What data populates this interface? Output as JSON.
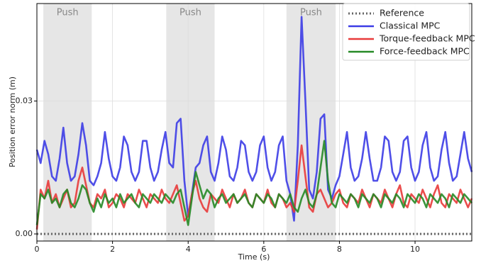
{
  "chart_data": {
    "type": "line",
    "xlabel": "Time (s)",
    "ylabel": "Position error norm (m)",
    "xlim": [
      0,
      11.5
    ],
    "ylim": [
      -0.0016,
      0.052
    ],
    "xticks": [
      0,
      2,
      4,
      6,
      8,
      10
    ],
    "yticks": [
      {
        "value": 0,
        "label": "0.00"
      },
      {
        "value": 0.03,
        "label": "0.03"
      }
    ],
    "grid": true,
    "legend": "upper right",
    "spans": [
      {
        "label": "Push",
        "range": [
          0.17,
          1.45
        ]
      },
      {
        "label": "Push",
        "range": [
          3.42,
          4.7
        ]
      },
      {
        "label": "Push",
        "range": [
          6.6,
          7.9
        ]
      }
    ],
    "x": [
      0,
      0.1,
      0.2,
      0.3,
      0.4,
      0.5,
      0.6,
      0.7,
      0.8,
      0.9,
      1,
      1.1,
      1.2,
      1.3,
      1.4,
      1.5,
      1.6,
      1.7,
      1.8,
      1.9,
      2,
      2.1,
      2.2,
      2.3,
      2.4,
      2.5,
      2.6,
      2.7,
      2.8,
      2.9,
      3,
      3.1,
      3.2,
      3.3,
      3.4,
      3.5,
      3.6,
      3.7,
      3.8,
      3.9,
      4,
      4.1,
      4.2,
      4.3,
      4.4,
      4.5,
      4.6,
      4.7,
      4.8,
      4.9,
      5,
      5.1,
      5.2,
      5.3,
      5.4,
      5.5,
      5.6,
      5.7,
      5.8,
      5.9,
      6,
      6.1,
      6.2,
      6.3,
      6.4,
      6.5,
      6.6,
      6.7,
      6.8,
      6.9,
      7,
      7.1,
      7.2,
      7.3,
      7.4,
      7.5,
      7.6,
      7.7,
      7.8,
      7.9,
      8,
      8.1,
      8.2,
      8.3,
      8.4,
      8.5,
      8.6,
      8.7,
      8.8,
      8.9,
      9,
      9.1,
      9.2,
      9.3,
      9.4,
      9.5,
      9.6,
      9.7,
      9.8,
      9.9,
      10,
      10.1,
      10.2,
      10.3,
      10.4,
      10.5,
      10.6,
      10.7,
      10.8,
      10.9,
      11,
      11.1,
      11.2,
      11.3,
      11.4,
      11.5
    ],
    "series": [
      {
        "name": "Reference",
        "color": "#666666",
        "style": "dotted",
        "x": [
          0,
          11.5
        ],
        "values": [
          0,
          0
        ]
      },
      {
        "name": "Classical MPC",
        "color": "#3c3ce6",
        "values": [
          0.019,
          0.016,
          0.021,
          0.018,
          0.013,
          0.012,
          0.017,
          0.024,
          0.016,
          0.012,
          0.013,
          0.018,
          0.025,
          0.02,
          0.012,
          0.011,
          0.013,
          0.016,
          0.023,
          0.017,
          0.013,
          0.012,
          0.015,
          0.022,
          0.02,
          0.014,
          0.012,
          0.014,
          0.021,
          0.021,
          0.015,
          0.012,
          0.014,
          0.019,
          0.023,
          0.016,
          0.015,
          0.025,
          0.026,
          0.012,
          0.004,
          0.009,
          0.015,
          0.016,
          0.02,
          0.022,
          0.014,
          0.012,
          0.016,
          0.022,
          0.019,
          0.013,
          0.012,
          0.015,
          0.021,
          0.02,
          0.014,
          0.012,
          0.014,
          0.02,
          0.022,
          0.015,
          0.012,
          0.014,
          0.02,
          0.022,
          0.012,
          0.009,
          0.003,
          0.02,
          0.049,
          0.03,
          0.01,
          0.008,
          0.014,
          0.026,
          0.027,
          0.01,
          0.008,
          0.011,
          0.013,
          0.018,
          0.023,
          0.015,
          0.012,
          0.013,
          0.017,
          0.023,
          0.017,
          0.012,
          0.012,
          0.015,
          0.022,
          0.021,
          0.014,
          0.012,
          0.014,
          0.021,
          0.022,
          0.015,
          0.012,
          0.014,
          0.02,
          0.023,
          0.015,
          0.012,
          0.013,
          0.019,
          0.023,
          0.016,
          0.012,
          0.013,
          0.018,
          0.023,
          0.017,
          0.014
        ]
      },
      {
        "name": "Torque-feedback MPC",
        "color": "#e83a3a",
        "values": [
          0.001,
          0.01,
          0.008,
          0.012,
          0.007,
          0.009,
          0.006,
          0.008,
          0.01,
          0.006,
          0.007,
          0.012,
          0.015,
          0.011,
          0.007,
          0.006,
          0.009,
          0.008,
          0.01,
          0.006,
          0.007,
          0.009,
          0.008,
          0.006,
          0.009,
          0.008,
          0.007,
          0.01,
          0.008,
          0.006,
          0.009,
          0.008,
          0.007,
          0.01,
          0.008,
          0.007,
          0.009,
          0.011,
          0.007,
          0.003,
          0.004,
          0.009,
          0.012,
          0.008,
          0.006,
          0.005,
          0.009,
          0.008,
          0.007,
          0.01,
          0.008,
          0.006,
          0.009,
          0.007,
          0.008,
          0.01,
          0.007,
          0.006,
          0.009,
          0.008,
          0.007,
          0.01,
          0.007,
          0.006,
          0.009,
          0.008,
          0.006,
          0.007,
          0.005,
          0.012,
          0.02,
          0.013,
          0.006,
          0.005,
          0.009,
          0.01,
          0.008,
          0.006,
          0.007,
          0.009,
          0.01,
          0.007,
          0.006,
          0.009,
          0.008,
          0.007,
          0.01,
          0.008,
          0.006,
          0.009,
          0.008,
          0.007,
          0.01,
          0.008,
          0.006,
          0.009,
          0.011,
          0.007,
          0.006,
          0.009,
          0.008,
          0.007,
          0.01,
          0.008,
          0.006,
          0.009,
          0.011,
          0.007,
          0.006,
          0.009,
          0.008,
          0.007,
          0.01,
          0.008,
          0.006,
          0.008
        ]
      },
      {
        "name": "Force-feedback MPC",
        "color": "#268a26",
        "values": [
          0.002,
          0.009,
          0.008,
          0.01,
          0.007,
          0.008,
          0.006,
          0.009,
          0.01,
          0.007,
          0.006,
          0.008,
          0.011,
          0.01,
          0.007,
          0.005,
          0.008,
          0.006,
          0.009,
          0.007,
          0.008,
          0.006,
          0.009,
          0.007,
          0.008,
          0.009,
          0.007,
          0.006,
          0.009,
          0.008,
          0.007,
          0.009,
          0.008,
          0.007,
          0.009,
          0.008,
          0.007,
          0.009,
          0.01,
          0.006,
          0.002,
          0.008,
          0.014,
          0.011,
          0.008,
          0.01,
          0.009,
          0.006,
          0.008,
          0.009,
          0.007,
          0.008,
          0.009,
          0.007,
          0.008,
          0.009,
          0.007,
          0.006,
          0.009,
          0.008,
          0.007,
          0.009,
          0.008,
          0.006,
          0.009,
          0.008,
          0.007,
          0.009,
          0.006,
          0.005,
          0.008,
          0.01,
          0.007,
          0.006,
          0.009,
          0.015,
          0.021,
          0.012,
          0.007,
          0.006,
          0.009,
          0.008,
          0.007,
          0.009,
          0.008,
          0.006,
          0.009,
          0.008,
          0.007,
          0.009,
          0.008,
          0.006,
          0.009,
          0.008,
          0.007,
          0.009,
          0.008,
          0.006,
          0.009,
          0.008,
          0.007,
          0.009,
          0.008,
          0.006,
          0.009,
          0.008,
          0.007,
          0.009,
          0.008,
          0.006,
          0.009,
          0.008,
          0.007,
          0.009,
          0.008,
          0.007
        ]
      }
    ]
  }
}
